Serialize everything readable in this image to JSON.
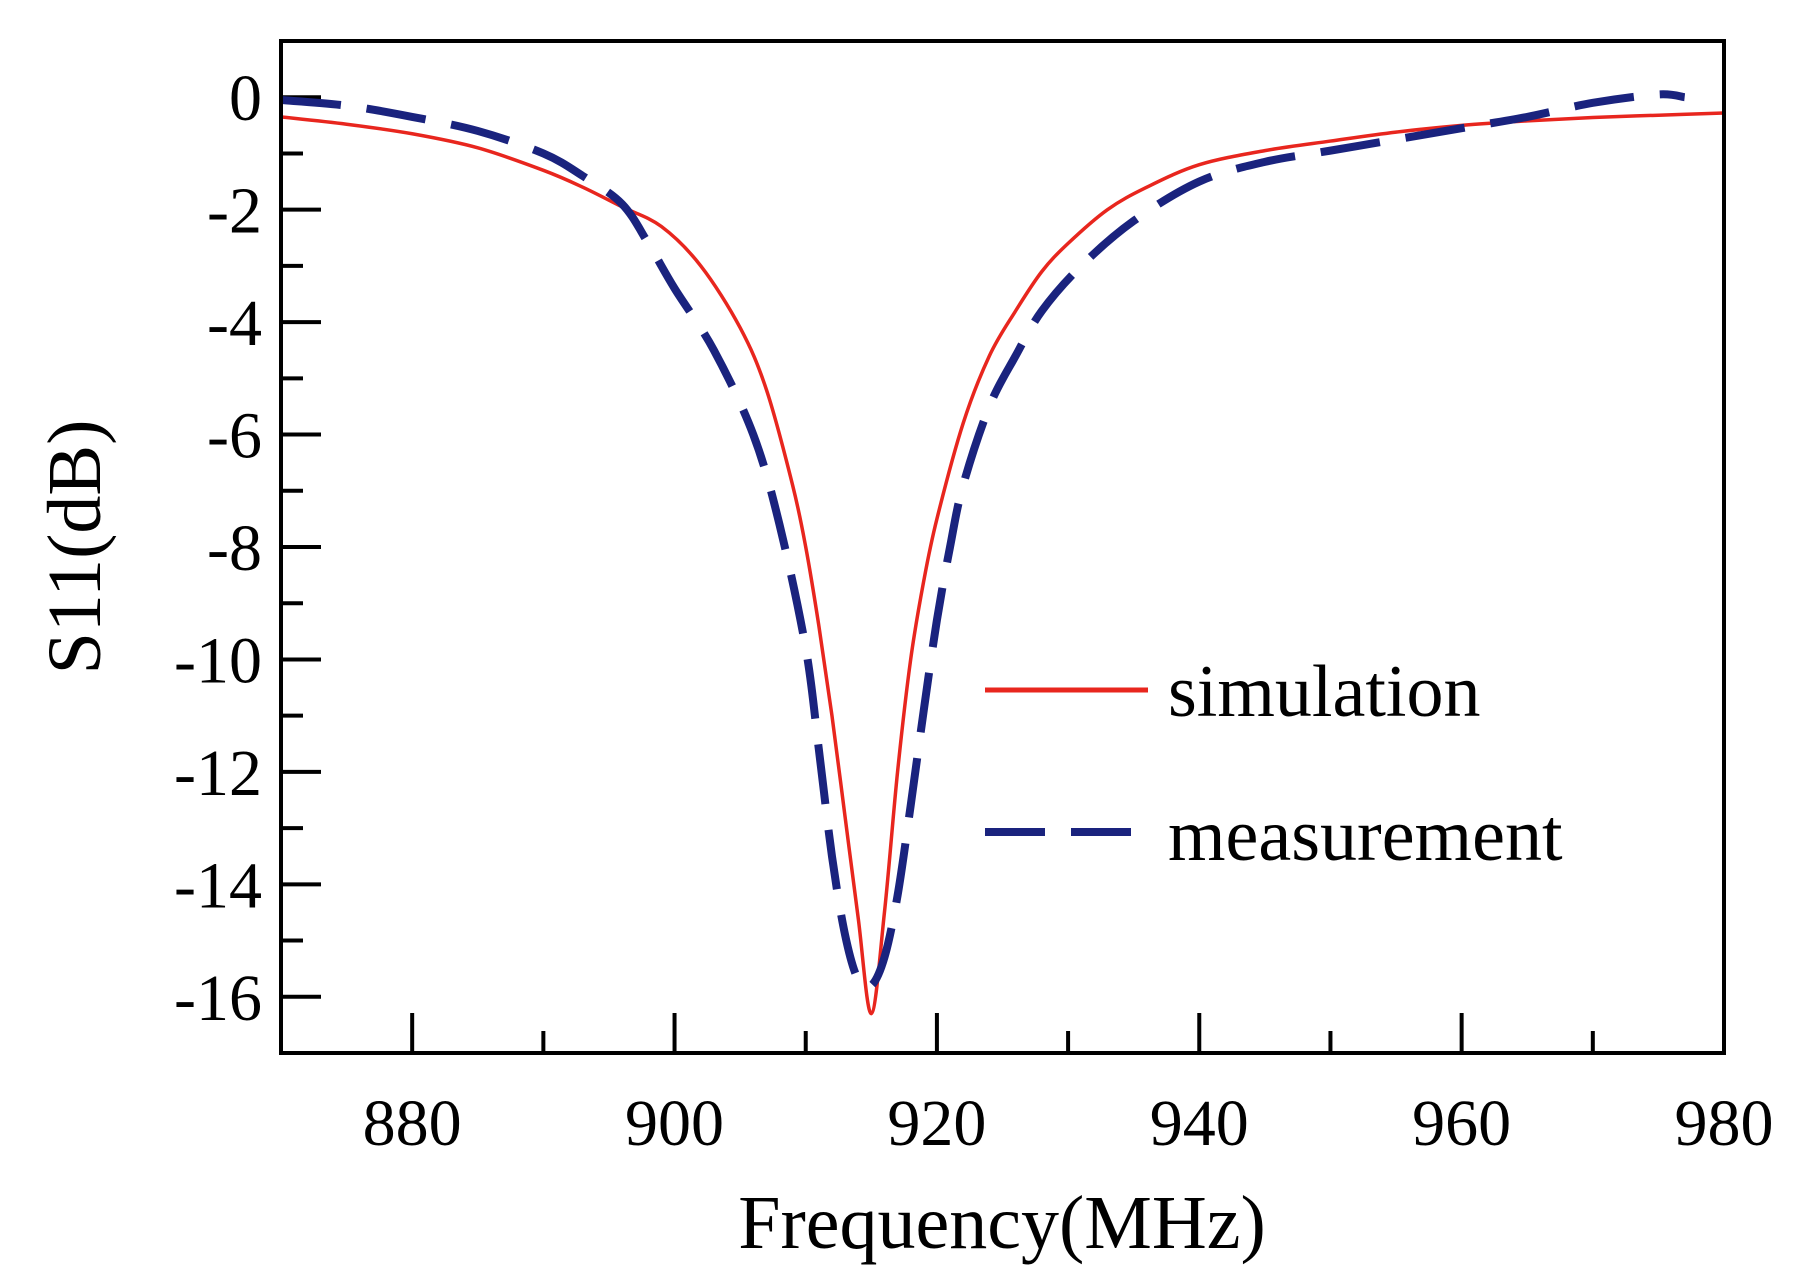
{
  "chart_data": {
    "type": "line",
    "title": "",
    "xlabel": "Frequency(MHz)",
    "ylabel": "S11(dB)",
    "xlim": [
      870,
      980
    ],
    "ylim": [
      -17,
      1
    ],
    "x_major_ticks": [
      880,
      900,
      920,
      940,
      960,
      980
    ],
    "x_minor_ticks": [
      870,
      890,
      910,
      930,
      950,
      970
    ],
    "y_major_ticks": [
      0,
      -2,
      -4,
      -6,
      -8,
      -10,
      -12,
      -14,
      -16
    ],
    "y_minor_ticks": [
      1,
      -1,
      -3,
      -5,
      -7,
      -9,
      -11,
      -13,
      -15,
      -17
    ],
    "x_tick_labels": [
      "880",
      "900",
      "920",
      "940",
      "960",
      "980"
    ],
    "y_tick_labels": [
      "0",
      "-2",
      "-4",
      "-6",
      "-8",
      "-10",
      "-12",
      "-14",
      "-16"
    ],
    "grid": false,
    "legend_position": "center-right",
    "series": [
      {
        "name": "simulation",
        "color": "#e8261e",
        "style": "solid",
        "x": [
          870,
          875,
          880,
          885,
          890,
          893,
          896,
          899,
          902,
          905,
          907,
          909,
          910,
          911,
          912,
          913,
          914,
          915,
          916,
          917,
          918,
          919,
          920,
          922,
          924,
          926,
          928,
          930,
          933,
          936,
          940,
          945,
          950,
          955,
          960,
          965,
          970,
          975,
          980
        ],
        "y": [
          -0.35,
          -0.48,
          -0.65,
          -0.9,
          -1.3,
          -1.6,
          -1.95,
          -2.3,
          -3.0,
          -4.1,
          -5.2,
          -6.9,
          -8.0,
          -9.4,
          -11.0,
          -12.8,
          -14.6,
          -16.3,
          -14.5,
          -12.0,
          -10.0,
          -8.6,
          -7.5,
          -5.8,
          -4.6,
          -3.8,
          -3.1,
          -2.6,
          -2.0,
          -1.6,
          -1.2,
          -0.95,
          -0.78,
          -0.62,
          -0.5,
          -0.42,
          -0.36,
          -0.32,
          -0.28
        ]
      },
      {
        "name": "measurement",
        "color": "#1a237e",
        "style": "dashed",
        "x": [
          870,
          875,
          880,
          885,
          890,
          893,
          896,
          898,
          900,
          903,
          906,
          908,
          910,
          911,
          912,
          913,
          914,
          915,
          916,
          917,
          918,
          919,
          920,
          921,
          922,
          924,
          926,
          928,
          931,
          935,
          940,
          945,
          950,
          955,
          960,
          965,
          970,
          975,
          977
        ],
        "y": [
          -0.05,
          -0.15,
          -0.35,
          -0.6,
          -1.0,
          -1.4,
          -1.9,
          -2.6,
          -3.4,
          -4.5,
          -6.0,
          -7.6,
          -9.8,
          -11.6,
          -13.5,
          -14.9,
          -15.7,
          -15.8,
          -15.3,
          -14.2,
          -12.6,
          -10.9,
          -9.3,
          -8.0,
          -6.9,
          -5.5,
          -4.6,
          -3.8,
          -3.0,
          -2.2,
          -1.5,
          -1.15,
          -0.95,
          -0.75,
          -0.55,
          -0.35,
          -0.1,
          0.05,
          0.0
        ]
      }
    ]
  }
}
